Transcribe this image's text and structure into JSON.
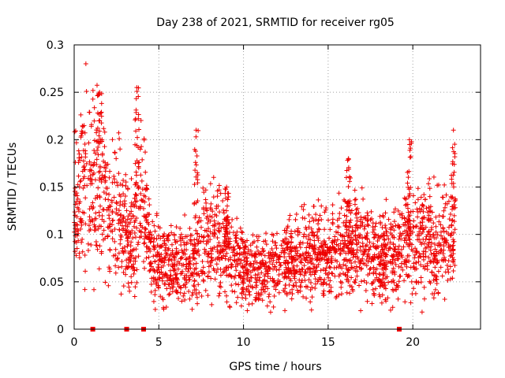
{
  "chart_data": {
    "type": "scatter",
    "title": "Day 238 of 2021, SRMTID for receiver rg05",
    "xlabel": "GPS time / hours",
    "ylabel": "SRMTID / TECUs",
    "xlim": [
      0,
      24
    ],
    "ylim": [
      0,
      0.3
    ],
    "x_ticks": [
      0,
      5,
      10,
      15,
      20
    ],
    "x_tick_labels": [
      "0",
      "5",
      "10",
      "15",
      "20"
    ],
    "y_ticks": [
      0,
      0.05,
      0.1,
      0.15,
      0.2,
      0.25,
      0.3
    ],
    "y_tick_labels": [
      "0",
      "0.05",
      "0.1",
      "0.15",
      "0.2",
      "0.25",
      "0.3"
    ],
    "grid": true,
    "marker": "+",
    "marker_color": "#ee0000",
    "data_range_hours": [
      0,
      22.5
    ],
    "envelope": [
      {
        "x": 0.0,
        "y": 0.12
      },
      {
        "x": 0.5,
        "y": 0.15
      },
      {
        "x": 1.0,
        "y": 0.16
      },
      {
        "x": 1.5,
        "y": 0.15
      },
      {
        "x": 2.0,
        "y": 0.14
      },
      {
        "x": 2.5,
        "y": 0.125
      },
      {
        "x": 3.0,
        "y": 0.105
      },
      {
        "x": 3.5,
        "y": 0.09
      },
      {
        "x": 4.0,
        "y": 0.14
      },
      {
        "x": 4.5,
        "y": 0.08
      },
      {
        "x": 5.0,
        "y": 0.07
      },
      {
        "x": 6.0,
        "y": 0.065
      },
      {
        "x": 7.0,
        "y": 0.07
      },
      {
        "x": 7.5,
        "y": 0.09
      },
      {
        "x": 8.5,
        "y": 0.1
      },
      {
        "x": 9.5,
        "y": 0.07
      },
      {
        "x": 10.5,
        "y": 0.06
      },
      {
        "x": 11.5,
        "y": 0.06
      },
      {
        "x": 12.5,
        "y": 0.07
      },
      {
        "x": 14.0,
        "y": 0.08
      },
      {
        "x": 15.0,
        "y": 0.075
      },
      {
        "x": 16.0,
        "y": 0.09
      },
      {
        "x": 17.0,
        "y": 0.085
      },
      {
        "x": 18.0,
        "y": 0.075
      },
      {
        "x": 19.0,
        "y": 0.08
      },
      {
        "x": 20.0,
        "y": 0.09
      },
      {
        "x": 21.0,
        "y": 0.09
      },
      {
        "x": 22.0,
        "y": 0.085
      },
      {
        "x": 22.5,
        "y": 0.09
      }
    ],
    "spikes": [
      {
        "x": 1.5,
        "y": 0.25
      },
      {
        "x": 3.7,
        "y": 0.255
      },
      {
        "x": 7.2,
        "y": 0.21
      },
      {
        "x": 9.0,
        "y": 0.15
      },
      {
        "x": 16.2,
        "y": 0.18
      },
      {
        "x": 19.8,
        "y": 0.2
      },
      {
        "x": 22.4,
        "y": 0.21
      }
    ],
    "baseline_markers_hours": [
      1.1,
      3.1,
      4.1,
      19.2
    ],
    "baseline_marker_value": 0
  }
}
